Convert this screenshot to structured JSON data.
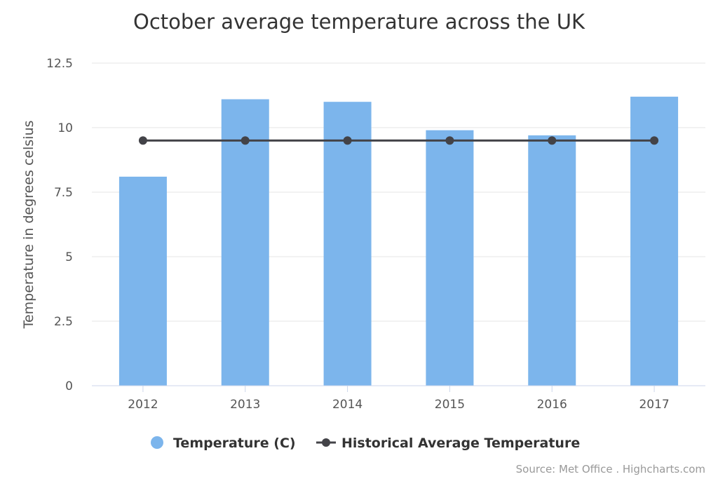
{
  "chart_data": {
    "type": "bar",
    "title": "October average temperature across the UK",
    "ylabel": "Temperature in degrees celsius",
    "xlabel": "",
    "categories": [
      "2012",
      "2013",
      "2014",
      "2015",
      "2016",
      "2017"
    ],
    "ylim": [
      0,
      12.5
    ],
    "yticks": [
      "0",
      "2.5",
      "5",
      "7.5",
      "10",
      "12.5"
    ],
    "grid": true,
    "legend_position": "bottom",
    "series": [
      {
        "name": "Temperature (C)",
        "type": "bar",
        "color": "#7cb5ec",
        "values": [
          8.1,
          11.1,
          11.0,
          9.9,
          9.7,
          11.2
        ]
      },
      {
        "name": "Historical Average Temperature",
        "type": "line",
        "color": "#434348",
        "values": [
          9.5,
          9.5,
          9.5,
          9.5,
          9.5,
          9.5
        ]
      }
    ],
    "credits": "Source: Met Office . Highcharts.com"
  }
}
